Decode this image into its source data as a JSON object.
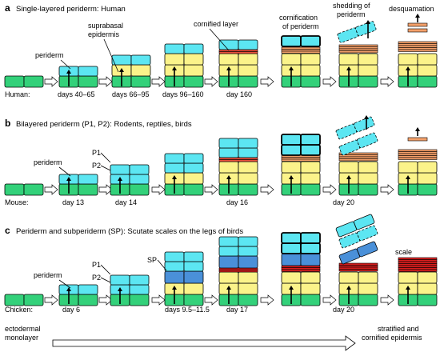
{
  "panels": {
    "a": {
      "letter": "a",
      "title": "Single-layered periderm: Human",
      "species": "Human:",
      "stages": [
        "days 40–65",
        "days 66–95",
        "days 96–160",
        "day 160"
      ],
      "labels": {
        "periderm": "periderm",
        "suprabasal_1": "suprabasal",
        "suprabasal_2": "epidermis",
        "cornified": "cornified layer",
        "cornification_1": "cornification",
        "cornification_2": "of periderm",
        "shedding_1": "shedding of",
        "shedding_2": "periderm",
        "desquamation": "desquamation"
      }
    },
    "b": {
      "letter": "b",
      "title": "Bilayered periderm (P1, P2): Rodents, reptiles, birds",
      "species": "Mouse:",
      "stages": [
        "day 13",
        "day 14",
        "day 16",
        "day 20"
      ],
      "labels": {
        "periderm": "periderm",
        "p1": "P1",
        "p2": "P2"
      }
    },
    "c": {
      "letter": "c",
      "title": "Periderm and subperiderm (SP): Scutate scales on the legs of birds",
      "species": "Chicken:",
      "stages": [
        "day 6",
        "days 9.5–11.5",
        "day 17",
        "day 20"
      ],
      "labels": {
        "periderm": "periderm",
        "p1": "P1",
        "p2": "P2",
        "sp": "SP",
        "scale": "scale"
      }
    }
  },
  "timeline": {
    "left_1": "ectodermal",
    "left_2": "monolayer",
    "right_1": "stratified and",
    "right_2": "cornified epidermis"
  },
  "colors": {
    "basal": "#33d17a",
    "suprabasal": "#fbf38a",
    "periderm": "#5ce6f2",
    "subperiderm": "#4a90d9",
    "granular": "#f4a06a",
    "cornified": "#e9503c",
    "scale": "#d81e1e"
  }
}
